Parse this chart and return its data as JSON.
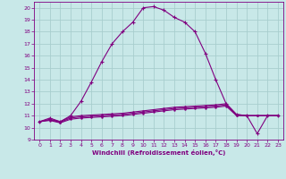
{
  "xlabel": "Windchill (Refroidissement éolien,°C)",
  "background_color": "#c8e8e8",
  "grid_color": "#a8cece",
  "line_color": "#800080",
  "xlim": [
    -0.5,
    23.5
  ],
  "ylim": [
    9,
    20.5
  ],
  "yticks": [
    9,
    10,
    11,
    12,
    13,
    14,
    15,
    16,
    17,
    18,
    19,
    20
  ],
  "xticks": [
    0,
    1,
    2,
    3,
    4,
    5,
    6,
    7,
    8,
    9,
    10,
    11,
    12,
    13,
    14,
    15,
    16,
    17,
    18,
    19,
    20,
    21,
    22,
    23
  ],
  "main_x": [
    0,
    1,
    2,
    3,
    4,
    5,
    6,
    7,
    8,
    9,
    10,
    11,
    12,
    13,
    14,
    15,
    16,
    17,
    18,
    19,
    20,
    21,
    22,
    23
  ],
  "main_y": [
    10.5,
    10.8,
    10.5,
    11.0,
    12.2,
    13.8,
    15.5,
    17.0,
    18.0,
    18.8,
    20.0,
    20.1,
    19.8,
    19.2,
    18.8,
    18.0,
    16.2,
    14.0,
    12.0,
    11.1,
    11.0,
    9.5,
    11.0,
    11.0
  ],
  "flat1_x": [
    0,
    1,
    2,
    3,
    4,
    5,
    6,
    7,
    8,
    9,
    10,
    11,
    12,
    13,
    14,
    15,
    16,
    17,
    18,
    19,
    20,
    21,
    22,
    23
  ],
  "flat1_y": [
    10.5,
    10.7,
    10.5,
    10.9,
    11.0,
    11.05,
    11.1,
    11.15,
    11.2,
    11.3,
    11.4,
    11.5,
    11.6,
    11.7,
    11.75,
    11.8,
    11.85,
    11.9,
    12.0,
    11.1,
    11.0,
    11.0,
    11.0,
    11.0
  ],
  "flat2_x": [
    0,
    1,
    2,
    3,
    4,
    5,
    6,
    7,
    8,
    9,
    10,
    11,
    12,
    13,
    14,
    15,
    16,
    17,
    18,
    19,
    20,
    21,
    22,
    23
  ],
  "flat2_y": [
    10.5,
    10.65,
    10.45,
    10.8,
    10.9,
    10.95,
    11.0,
    11.05,
    11.1,
    11.2,
    11.3,
    11.4,
    11.5,
    11.6,
    11.65,
    11.7,
    11.75,
    11.8,
    11.9,
    11.05,
    11.0,
    11.0,
    11.0,
    11.0
  ],
  "flat3_x": [
    0,
    1,
    2,
    3,
    4,
    5,
    6,
    7,
    8,
    9,
    10,
    11,
    12,
    13,
    14,
    15,
    16,
    17,
    18,
    19,
    20,
    21,
    22,
    23
  ],
  "flat3_y": [
    10.5,
    10.6,
    10.4,
    10.7,
    10.8,
    10.85,
    10.9,
    10.95,
    11.0,
    11.1,
    11.2,
    11.3,
    11.4,
    11.5,
    11.55,
    11.6,
    11.65,
    11.7,
    11.8,
    11.0,
    11.0,
    11.0,
    11.0,
    11.0
  ]
}
